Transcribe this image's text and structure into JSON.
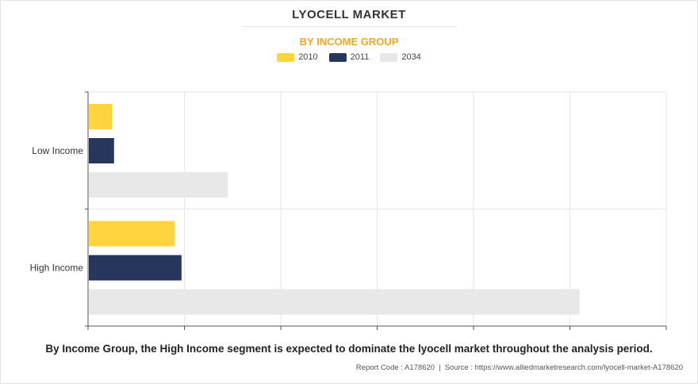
{
  "header": {
    "title": "LYOCELL MARKET",
    "subtitle": "BY INCOME GROUP"
  },
  "colors": {
    "2010": "#ffd43f",
    "2011": "#27365c",
    "2034": "#e8e8e8",
    "accent": "#f6a623",
    "grid": "#e6e6e6"
  },
  "legend": [
    {
      "label": "2010",
      "color": "#ffd43f"
    },
    {
      "label": "2011",
      "color": "#27365c"
    },
    {
      "label": "2034",
      "color": "#e8e8e8"
    }
  ],
  "chart_data": {
    "type": "bar",
    "orientation": "horizontal",
    "title": "LYOCELL MARKET",
    "subtitle": "BY INCOME GROUP",
    "categories": [
      "Low Income",
      "High Income"
    ],
    "series": [
      {
        "name": "2010",
        "values": [
          0.25,
          0.9
        ]
      },
      {
        "name": "2011",
        "values": [
          0.27,
          0.97
        ]
      },
      {
        "name": "2034",
        "values": [
          1.45,
          5.1
        ]
      }
    ],
    "xlim": [
      0,
      6
    ],
    "x_tick_labels": false,
    "grid": true,
    "legend_position": "top"
  },
  "caption": "By Income Group, the High Income segment is expected to dominate the lyocell market throughout the analysis period.",
  "footer": {
    "report_code": "Report Code : A178620",
    "separator": "|",
    "source": "Source : https://www.alliedmarketresearch.com/lyocell-market-A178620"
  }
}
